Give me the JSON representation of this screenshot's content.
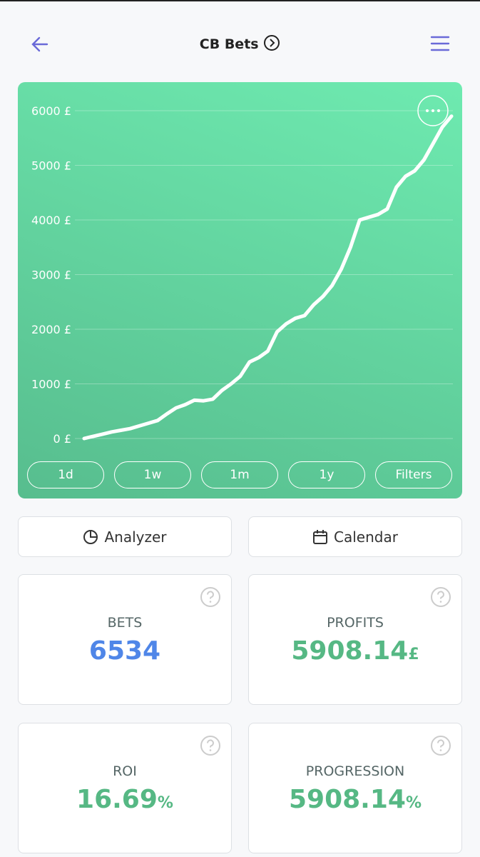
{
  "header": {
    "title": "CB Bets"
  },
  "chart_data": {
    "type": "line",
    "values": [
      0,
      40,
      80,
      120,
      150,
      180,
      230,
      280,
      330,
      450,
      560,
      620,
      700,
      690,
      720,
      880,
      1000,
      1140,
      1400,
      1480,
      1600,
      1950,
      2100,
      2200,
      2250,
      2450,
      2600,
      2800,
      3100,
      3500,
      4000,
      4050,
      4100,
      4200,
      4600,
      4800,
      4900,
      5100,
      5400,
      5700,
      5900
    ],
    "color": "#ffffff",
    "ylim": [
      0,
      6000
    ],
    "yticks": [
      {
        "value": 0,
        "label": "0 £"
      },
      {
        "value": 1000,
        "label": "1000 £"
      },
      {
        "value": 2000,
        "label": "2000 £"
      },
      {
        "value": 3000,
        "label": "3000 £"
      },
      {
        "value": 4000,
        "label": "4000 £"
      },
      {
        "value": 5000,
        "label": "5000 £"
      },
      {
        "value": 6000,
        "label": "6000 £"
      }
    ],
    "grid": true
  },
  "range_buttons": [
    "1d",
    "1w",
    "1m",
    "1y",
    "Filters"
  ],
  "actions": [
    "Analyzer",
    "Calendar"
  ],
  "stats": [
    {
      "label": "BETS",
      "value": "6534"
    },
    {
      "label": "PROFITS",
      "value": "5908.14",
      "unit": "£"
    },
    {
      "label": "ROI",
      "value": "16.69",
      "unit": "%"
    },
    {
      "label": "PROGRESSION",
      "value": "5908.14",
      "unit": "%"
    }
  ]
}
